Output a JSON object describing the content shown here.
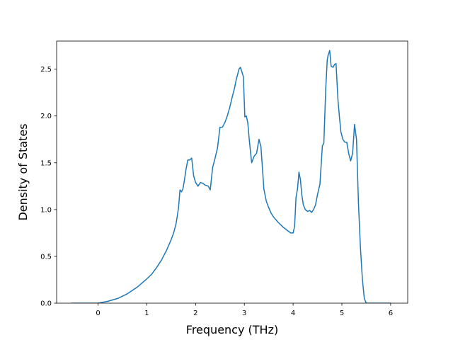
{
  "chart_data": {
    "type": "line",
    "title": "",
    "xlabel": "Frequency (THz)",
    "ylabel": "Density of States",
    "xlim": [
      -0.85,
      6.35
    ],
    "ylim": [
      0.0,
      2.8
    ],
    "xticks": [
      0,
      1,
      2,
      3,
      4,
      5,
      6
    ],
    "xtick_labels": [
      "0",
      "1",
      "2",
      "3",
      "4",
      "5",
      "6"
    ],
    "yticks": [
      0.0,
      0.5,
      1.0,
      1.5,
      2.0,
      2.5
    ],
    "ytick_labels": [
      "0.0",
      "0.5",
      "1.0",
      "1.5",
      "2.0",
      "2.5"
    ],
    "grid": false,
    "legend": "none",
    "line_color": "#1f77b4",
    "series": [
      {
        "x": [
          -0.55,
          -0.2,
          0.0,
          0.2,
          0.4,
          0.6,
          0.8,
          1.0,
          1.1,
          1.2,
          1.3,
          1.4,
          1.5,
          1.55,
          1.6,
          1.65,
          1.68,
          1.71,
          1.74,
          1.77,
          1.8,
          1.84,
          1.88,
          1.92,
          1.96,
          2.0,
          2.05,
          2.1,
          2.15,
          2.2,
          2.26,
          2.3,
          2.35,
          2.4,
          2.45,
          2.5,
          2.55,
          2.6,
          2.65,
          2.7,
          2.75,
          2.8,
          2.83,
          2.86,
          2.89,
          2.92,
          2.95,
          2.98,
          3.01,
          3.04,
          3.07,
          3.1,
          3.15,
          3.2,
          3.25,
          3.3,
          3.34,
          3.37,
          3.4,
          3.45,
          3.5,
          3.55,
          3.6,
          3.7,
          3.8,
          3.9,
          3.95,
          4.0,
          4.03,
          4.06,
          4.09,
          4.12,
          4.15,
          4.18,
          4.21,
          4.25,
          4.3,
          4.34,
          4.38,
          4.42,
          4.46,
          4.5,
          4.55,
          4.6,
          4.63,
          4.67,
          4.7,
          4.72,
          4.75,
          4.78,
          4.82,
          4.85,
          4.88,
          4.92,
          4.95,
          4.98,
          5.02,
          5.06,
          5.1,
          5.14,
          5.18,
          5.22,
          5.26,
          5.3,
          5.34,
          5.38,
          5.42,
          5.46,
          5.5,
          5.6,
          6.0
        ],
        "y": [
          0.0,
          0.0,
          0.0,
          0.02,
          0.05,
          0.1,
          0.17,
          0.26,
          0.31,
          0.38,
          0.46,
          0.56,
          0.68,
          0.75,
          0.85,
          1.02,
          1.21,
          1.19,
          1.22,
          1.31,
          1.42,
          1.53,
          1.53,
          1.55,
          1.36,
          1.29,
          1.25,
          1.29,
          1.28,
          1.26,
          1.25,
          1.21,
          1.45,
          1.55,
          1.66,
          1.88,
          1.88,
          1.93,
          2.0,
          2.09,
          2.2,
          2.3,
          2.38,
          2.44,
          2.5,
          2.52,
          2.47,
          2.42,
          1.99,
          2.0,
          1.93,
          1.75,
          1.5,
          1.57,
          1.6,
          1.75,
          1.67,
          1.45,
          1.22,
          1.09,
          1.02,
          0.96,
          0.92,
          0.86,
          0.81,
          0.77,
          0.75,
          0.75,
          0.82,
          1.13,
          1.22,
          1.4,
          1.32,
          1.15,
          1.05,
          1.0,
          0.98,
          0.99,
          0.97,
          1.0,
          1.05,
          1.16,
          1.27,
          1.68,
          1.71,
          2.3,
          2.6,
          2.65,
          2.7,
          2.53,
          2.52,
          2.55,
          2.56,
          2.17,
          1.99,
          1.83,
          1.75,
          1.72,
          1.72,
          1.6,
          1.52,
          1.6,
          1.91,
          1.75,
          1.07,
          0.6,
          0.26,
          0.05,
          0.0,
          0.0,
          0.0
        ]
      }
    ]
  }
}
